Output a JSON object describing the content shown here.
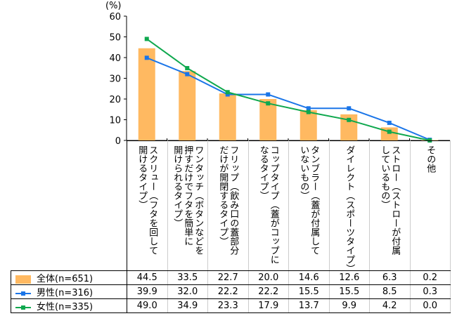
{
  "chart_data": {
    "type": "bar+line",
    "ylabel": "(%)",
    "ylim": [
      0,
      60
    ],
    "yticks": [
      0,
      10,
      20,
      30,
      40,
      50,
      60
    ],
    "categories": [
      "スクリュー（フタを回して\n開けるタイプ）",
      "ワンタッチ（ボタンなどを\n押すだけでフタを簡単に\n開けられるタイプ）",
      "フリップ（飲み口の蓋部分\nだけが開閉するタイプ）",
      "コップタイプ（蓋がコップに\nなるタイプ）",
      "タンブラー（蓋が付属して\nいないもの）",
      "ダイレクト（スポーツタイプ）",
      "ストロー（ストローが付属\nしているもの）",
      "その他"
    ],
    "series": [
      {
        "name": "全体(n=651)",
        "kind": "bar",
        "color": "#ffb961",
        "values": [
          "44.5",
          "33.5",
          "22.7",
          "20.0",
          "14.6",
          "12.6",
          "6.3",
          "0.2"
        ]
      },
      {
        "name": "男性(n=316)",
        "kind": "line",
        "color": "#1a75e8",
        "values": [
          "39.9",
          "32.0",
          "22.2",
          "22.2",
          "15.5",
          "15.5",
          "8.5",
          "0.3"
        ]
      },
      {
        "name": "女性(n=335)",
        "kind": "line",
        "color": "#0fa84e",
        "values": [
          "49.0",
          "34.9",
          "23.3",
          "17.9",
          "13.7",
          "9.9",
          "4.2",
          "0.0"
        ]
      }
    ]
  }
}
